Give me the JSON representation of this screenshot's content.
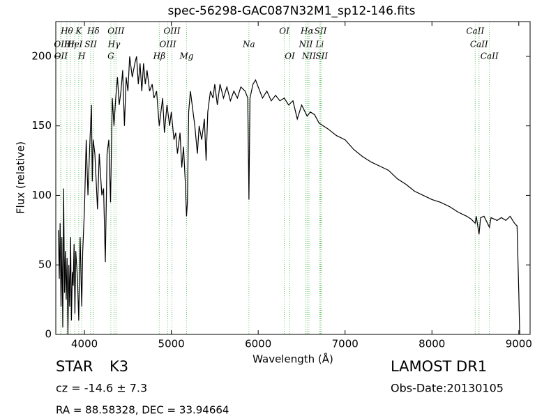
{
  "chart_data": {
    "type": "line",
    "title": "spec-56298-GAC087N32M1_sp12-146.fits",
    "x_label": "Wavelength (Å)",
    "y_label": "Flux (relative)",
    "color": "#000000",
    "line_color": "#66c266",
    "xlim": [
      3670,
      9130
    ],
    "ylim": [
      0,
      225
    ],
    "xticks": [
      4000,
      5000,
      6000,
      7000,
      8000,
      9000
    ],
    "yticks": [
      0,
      50,
      100,
      150,
      200
    ],
    "grid": false,
    "x": [
      3700,
      3710,
      3720,
      3730,
      3740,
      3750,
      3760,
      3770,
      3780,
      3790,
      3800,
      3810,
      3820,
      3830,
      3840,
      3850,
      3860,
      3870,
      3880,
      3890,
      3900,
      3920,
      3934,
      3950,
      3969,
      3980,
      4000,
      4020,
      4040,
      4060,
      4080,
      4090,
      4100,
      4120,
      4150,
      4170,
      4200,
      4220,
      4240,
      4260,
      4280,
      4300,
      4320,
      4340,
      4360,
      4380,
      4400,
      4420,
      4440,
      4460,
      4480,
      4500,
      4520,
      4550,
      4580,
      4600,
      4620,
      4640,
      4660,
      4680,
      4700,
      4720,
      4750,
      4780,
      4800,
      4830,
      4861,
      4880,
      4900,
      4920,
      4950,
      4980,
      5000,
      5030,
      5050,
      5070,
      5100,
      5120,
      5140,
      5160,
      5175,
      5185,
      5200,
      5220,
      5240,
      5270,
      5300,
      5320,
      5350,
      5380,
      5400,
      5420,
      5450,
      5480,
      5500,
      5530,
      5560,
      5600,
      5640,
      5680,
      5720,
      5760,
      5800,
      5850,
      5880,
      5893,
      5905,
      5940,
      5970,
      6000,
      6050,
      6100,
      6150,
      6200,
      6250,
      6300,
      6350,
      6400,
      6450,
      6500,
      6563,
      6600,
      6650,
      6700,
      6750,
      6800,
      6900,
      7000,
      7100,
      7200,
      7300,
      7400,
      7500,
      7600,
      7700,
      7800,
      7900,
      8000,
      8100,
      8200,
      8300,
      8400,
      8450,
      8498,
      8510,
      8542,
      8560,
      8600,
      8662,
      8680,
      8750,
      8800,
      8850,
      8900,
      8950,
      8980,
      9000,
      9010
    ],
    "values": [
      75,
      40,
      80,
      20,
      70,
      5,
      105,
      30,
      60,
      25,
      55,
      0,
      50,
      20,
      70,
      10,
      45,
      35,
      65,
      15,
      60,
      40,
      10,
      70,
      20,
      60,
      90,
      140,
      100,
      135,
      165,
      110,
      140,
      130,
      90,
      130,
      100,
      105,
      52,
      130,
      140,
      95,
      170,
      150,
      170,
      185,
      165,
      175,
      190,
      150,
      185,
      175,
      200,
      185,
      195,
      200,
      180,
      195,
      175,
      195,
      180,
      190,
      175,
      180,
      170,
      175,
      150,
      160,
      170,
      145,
      165,
      150,
      160,
      140,
      145,
      130,
      145,
      120,
      135,
      110,
      85,
      95,
      160,
      175,
      165,
      150,
      130,
      150,
      140,
      155,
      125,
      160,
      175,
      170,
      180,
      165,
      180,
      170,
      178,
      168,
      175,
      170,
      178,
      175,
      170,
      97,
      170,
      180,
      183,
      178,
      170,
      175,
      168,
      172,
      168,
      170,
      165,
      168,
      155,
      165,
      157,
      160,
      158,
      152,
      150,
      148,
      143,
      140,
      133,
      128,
      124,
      121,
      118,
      112,
      108,
      103,
      100,
      97,
      95,
      92,
      88,
      85,
      83,
      80,
      85,
      72,
      84,
      85,
      77,
      84,
      82,
      84,
      82,
      85,
      80,
      78,
      30,
      0
    ],
    "spectral_lines": [
      [
        {
          "label": "Hθ",
          "x": 3798
        },
        {
          "label": "K",
          "x": 3934
        },
        {
          "label": "Hδ",
          "x": 4102
        },
        {
          "label": "OIII",
          "x": 4363
        },
        {
          "label": "OIII",
          "x": 5007
        },
        {
          "label": "OI",
          "x": 6300
        },
        {
          "label": "Hα",
          "x": 6563
        },
        {
          "label": "SII",
          "x": 6717
        },
        {
          "label": "CaII",
          "x": 8498
        }
      ],
      [
        {
          "label": "OII",
          "x": 3727
        },
        {
          "label": "Hη",
          "x": 3835
        },
        {
          "label": "HeI",
          "x": 3889
        },
        {
          "label": "SII",
          "x": 4072
        },
        {
          "label": "Hγ",
          "x": 4340
        },
        {
          "label": "OIII",
          "x": 4959
        },
        {
          "label": "Na",
          "x": 5893
        },
        {
          "label": "NII",
          "x": 6548
        },
        {
          "label": "Li",
          "x": 6708
        },
        {
          "label": "CaII",
          "x": 8542
        }
      ],
      [
        {
          "label": "OII",
          "x": 3729
        },
        {
          "label": "H",
          "x": 3969
        },
        {
          "label": "G",
          "x": 4304
        },
        {
          "label": "Hβ",
          "x": 4861
        },
        {
          "label": "Mg",
          "x": 5175
        },
        {
          "label": "OI",
          "x": 6364
        },
        {
          "label": "NII",
          "x": 6584
        },
        {
          "label": "SII",
          "x": 6731
        },
        {
          "label": "CaII",
          "x": 8662
        }
      ]
    ]
  },
  "info": {
    "object_class": "STAR",
    "subclass": "K3",
    "redshift": "cz = -14.6 ± 7.3",
    "coordinates": "RA = 88.58328, DEC = 33.94664",
    "survey": "LAMOST DR1",
    "obs_date": "Obs-Date:20130105"
  }
}
